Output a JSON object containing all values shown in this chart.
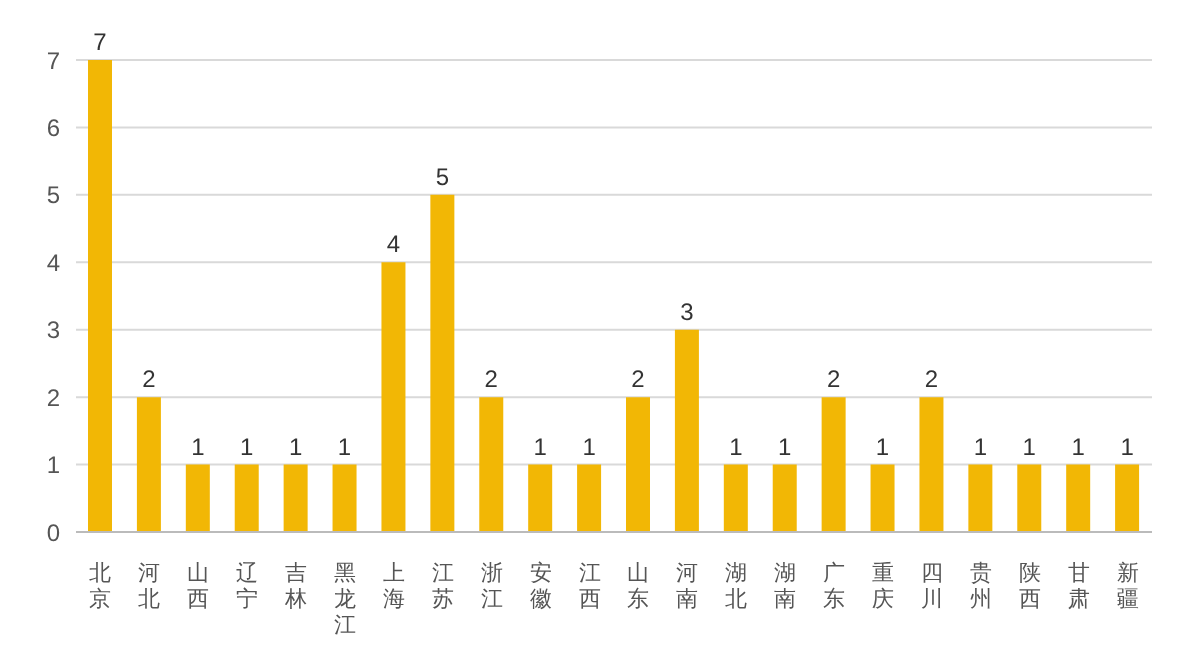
{
  "chart_data": {
    "type": "bar",
    "categories": [
      "北京",
      "河北",
      "山西",
      "辽宁",
      "吉林",
      "黑龙江",
      "上海",
      "江苏",
      "浙江",
      "安徽",
      "江西",
      "山东",
      "河南",
      "湖北",
      "湖南",
      "广东",
      "重庆",
      "四川",
      "贵州",
      "陕西",
      "甘肃",
      "新疆"
    ],
    "values": [
      7,
      2,
      1,
      1,
      1,
      1,
      4,
      5,
      2,
      1,
      1,
      2,
      3,
      1,
      1,
      2,
      1,
      2,
      1,
      1,
      1,
      1
    ],
    "color": "#f2b705",
    "ylim": [
      0,
      7
    ],
    "yticks": [
      0,
      1,
      2,
      3,
      4,
      5,
      6,
      7
    ],
    "grid": "y",
    "data_labels": true
  }
}
